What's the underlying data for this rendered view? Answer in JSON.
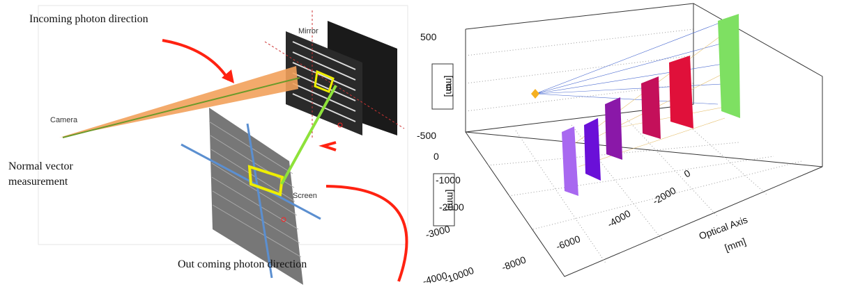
{
  "left": {
    "incoming": "Incoming photon direction",
    "mirror": "Mirror",
    "camera": "Camera",
    "normal": [
      "Normal vector",
      "measurement"
    ],
    "screen": "Screen",
    "outcoming": "Out coming photon direction"
  },
  "right": {
    "z_ticks": [
      "500",
      "0",
      "-500"
    ],
    "z_unit": "[mm]",
    "y_ticks": [
      "0",
      "-1000",
      "-2000",
      "-3000",
      "-4000"
    ],
    "y_unit": "[mm]",
    "x_ticks": [
      "-10000",
      "-8000",
      "-6000",
      "-4000",
      "-2000",
      "0"
    ],
    "x_title": "Optical Axis",
    "x_unit": "[mm]"
  }
}
